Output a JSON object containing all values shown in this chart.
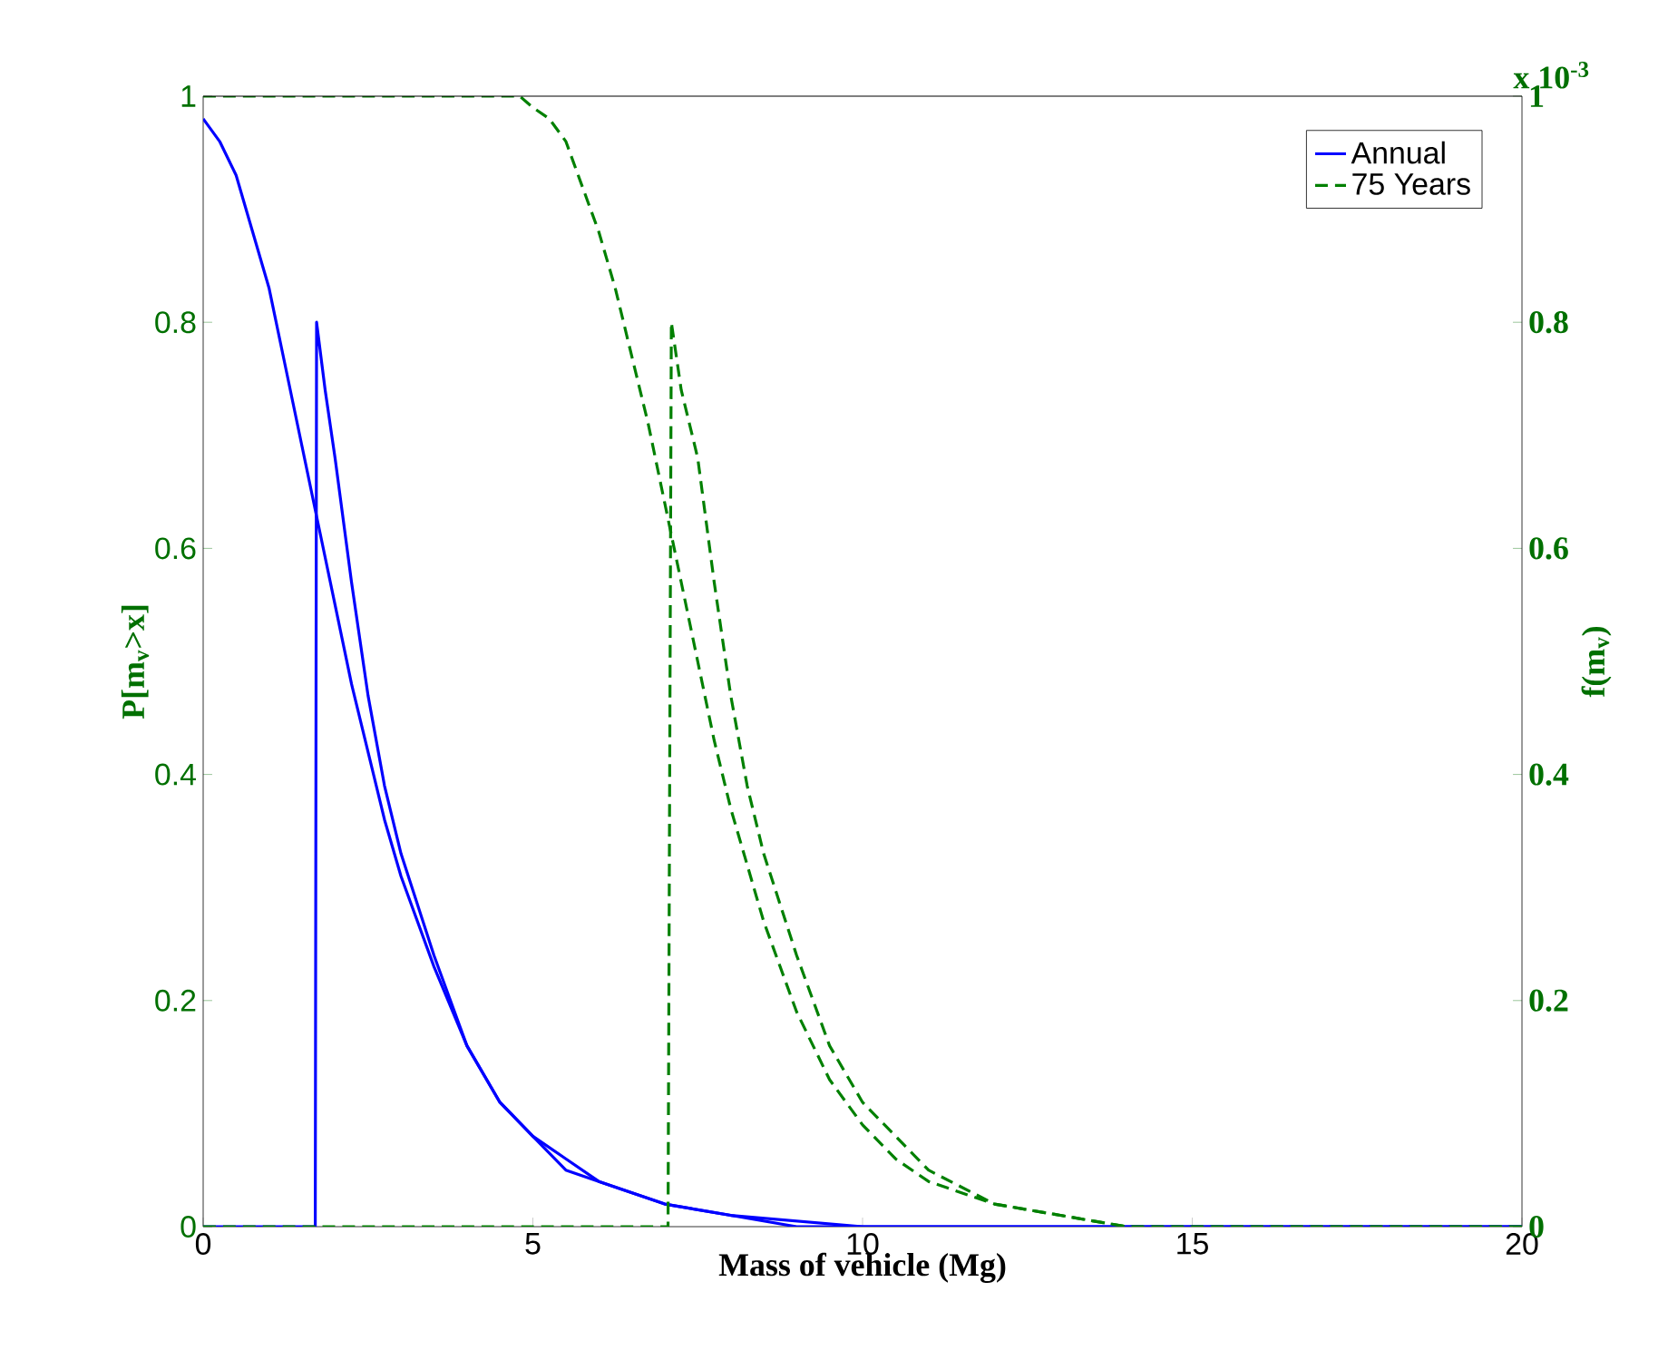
{
  "chart_data": {
    "type": "line",
    "xlabel": "Mass of vehicle (Mg)",
    "ylabel": "P[m$_{v}$>x]",
    "y2label": "f(m$_{v}$)",
    "annotations": [
      "x 10$^{-3}$"
    ],
    "xlim": [
      0,
      20
    ],
    "xticks": [
      0,
      5,
      10,
      15,
      20
    ],
    "ylim": [
      0,
      1
    ],
    "yticks": [
      0,
      0.2,
      0.4,
      0.6,
      0.8,
      1
    ],
    "y2lim": [
      0,
      1
    ],
    "y2ticks": [
      0,
      0.2,
      0.4,
      0.6,
      0.8,
      1
    ],
    "legend": "top right",
    "grid": false,
    "series": [
      {
        "name": "Annual",
        "color": "#0000ff",
        "line_style": "solid",
        "x": [
          0,
          0.25,
          0.5,
          0.75,
          1,
          1.25,
          1.5,
          1.75,
          2,
          2.25,
          2.5,
          2.75,
          3,
          3.5,
          4,
          4.5,
          5,
          5.5,
          6,
          7,
          8,
          9,
          10,
          12,
          15,
          20
        ],
        "values": [
          0.98,
          0.96,
          0.93,
          0.88,
          0.83,
          0.76,
          0.69,
          0.62,
          0.55,
          0.48,
          0.42,
          0.36,
          0.31,
          0.23,
          0.16,
          0.11,
          0.08,
          0.05,
          0.04,
          0.02,
          0.01,
          0,
          0,
          0,
          0,
          0
        ]
      },
      {
        "name": "75 Years",
        "color": "#008000",
        "line_style": "dashed",
        "x": [
          0,
          4.8,
          5,
          5.25,
          5.5,
          5.75,
          6,
          6.25,
          6.5,
          6.75,
          7,
          7.25,
          7.5,
          7.75,
          8,
          8.5,
          9,
          9.5,
          10,
          10.5,
          11,
          12,
          13,
          14,
          15,
          20
        ],
        "values": [
          1,
          1,
          0.99,
          0.98,
          0.96,
          0.92,
          0.88,
          0.83,
          0.77,
          0.71,
          0.64,
          0.57,
          0.5,
          0.43,
          0.37,
          0.27,
          0.19,
          0.13,
          0.09,
          0.06,
          0.04,
          0.02,
          0.01,
          0,
          0,
          0
        ]
      },
      {
        "color": "#0000ff",
        "line_style": "solid",
        "axis": "y2",
        "x": [
          0,
          1.7,
          1.72,
          1.85,
          2,
          2.25,
          2.5,
          2.75,
          3,
          3.5,
          4,
          4.5,
          5,
          5.5,
          6,
          7,
          8,
          10,
          20
        ],
        "values": [
          0,
          0,
          0.8,
          0.74,
          0.68,
          0.57,
          0.47,
          0.39,
          0.33,
          0.24,
          0.16,
          0.11,
          0.08,
          0.06,
          0.04,
          0.02,
          0.01,
          0,
          0
        ]
      },
      {
        "color": "#008000",
        "line_style": "dashed",
        "axis": "y2",
        "x": [
          0,
          7.05,
          7.1,
          7.25,
          7.5,
          7.75,
          8,
          8.25,
          8.5,
          9,
          9.5,
          10,
          10.5,
          11,
          12,
          13,
          14,
          15,
          20
        ],
        "values": [
          0,
          0,
          0.8,
          0.74,
          0.68,
          0.57,
          0.47,
          0.39,
          0.33,
          0.24,
          0.16,
          0.11,
          0.08,
          0.05,
          0.02,
          0.01,
          0,
          0,
          0
        ]
      }
    ]
  }
}
